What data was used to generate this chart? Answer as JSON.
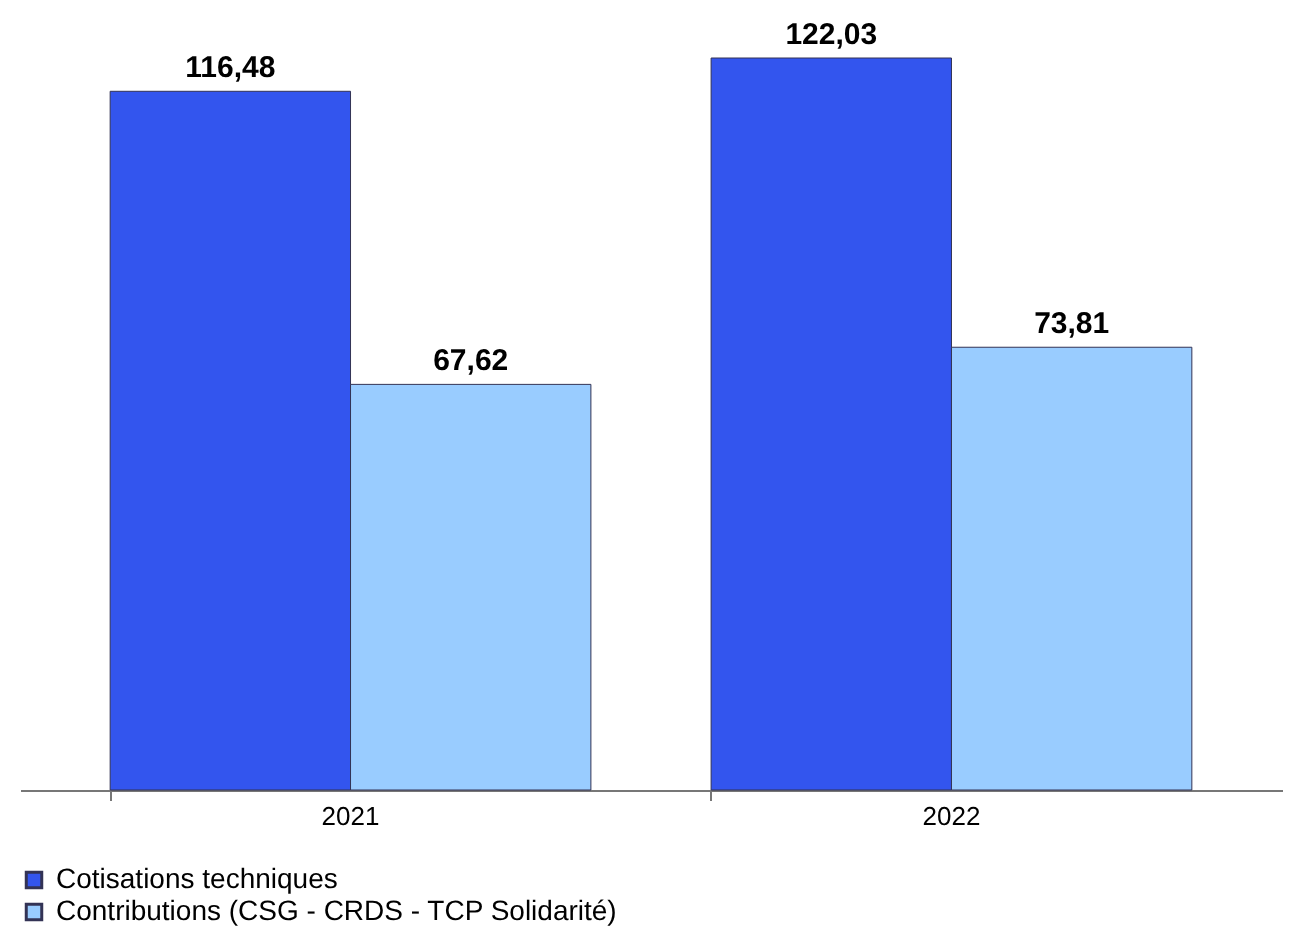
{
  "chart_data": {
    "type": "bar",
    "categories": [
      "2021",
      "2022"
    ],
    "series": [
      {
        "name": "Cotisations techniques",
        "color": "#3355ee",
        "values": [
          116.48,
          122.03
        ],
        "value_labels": [
          "116,48",
          "122,03"
        ]
      },
      {
        "name": "Contributions (CSG - CRDS - TCP Solidarité)",
        "color": "#99ccff",
        "values": [
          67.62,
          73.81
        ],
        "value_labels": [
          "67,62",
          "73,81"
        ]
      }
    ],
    "legend": "bottom",
    "grid": false
  }
}
